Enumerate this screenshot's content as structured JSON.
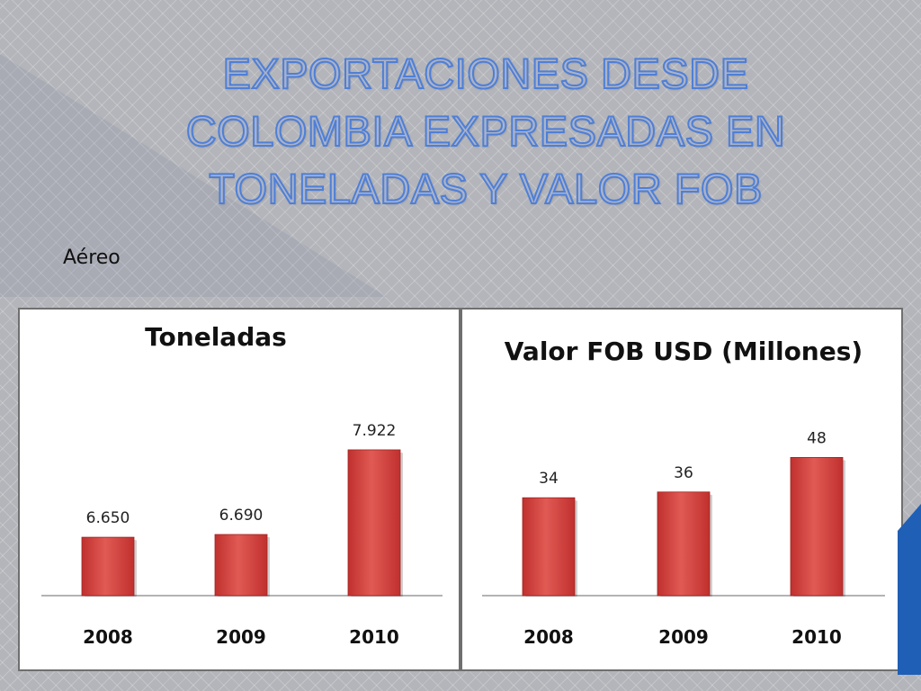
{
  "slide": {
    "title": "EXPORTACIONES DESDE COLOMBIA EXPRESADAS EN TONELADAS Y VALOR FOB",
    "title_lines": [
      "EXPORTACIONES DESDE",
      "COLOMBIA EXPRESADAS EN",
      "TONELADAS Y VALOR FOB"
    ],
    "subtitle": "Aéreo"
  },
  "colors": {
    "bar": "#c0302e",
    "bar_light": "#e15a54",
    "title_fill": "#aab3c9",
    "title_outline": "#4f7fd6",
    "accent_blue": "#1f5fb5"
  },
  "chart_data": [
    {
      "type": "bar",
      "title": "Toneladas",
      "categories": [
        "2008",
        "2009",
        "2010"
      ],
      "values": [
        6650,
        6690,
        7922
      ],
      "value_labels": [
        "6.650",
        "6.690",
        "7.922"
      ],
      "xlabel": "",
      "ylabel": "",
      "ylim": [
        5800,
        8000
      ],
      "grid": false,
      "legend": "none"
    },
    {
      "type": "bar",
      "title": "Valor FOB USD (Millones)",
      "categories": [
        "2008",
        "2009",
        "2010"
      ],
      "values": [
        34,
        36,
        48
      ],
      "value_labels": [
        "34",
        "36",
        "48"
      ],
      "xlabel": "",
      "ylabel": "",
      "ylim": [
        0,
        55
      ],
      "grid": false,
      "legend": "none"
    }
  ]
}
